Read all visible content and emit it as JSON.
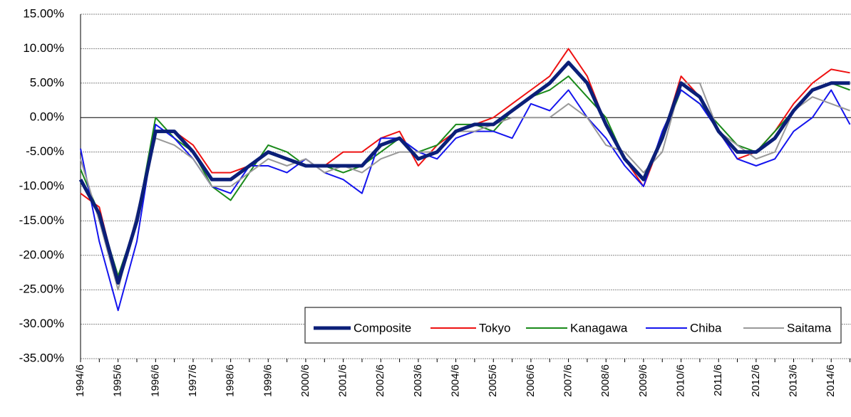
{
  "chart_data": {
    "type": "line",
    "categories": [
      "1994/6",
      null,
      "1995/6",
      null,
      "1996/6",
      null,
      "1997/6",
      null,
      "1998/6",
      null,
      "1999/6",
      null,
      "2000/6",
      null,
      "2001/6",
      null,
      "2002/6",
      null,
      "2003/6",
      null,
      "2004/6",
      null,
      "2005/6",
      null,
      "2006/6",
      null,
      "2007/6",
      null,
      "2008/6",
      null,
      "2009/6",
      null,
      "2010/6",
      null,
      "2011/6",
      null,
      "2012/6",
      null,
      "2013/6",
      null,
      "2014/6",
      null
    ],
    "series": [
      {
        "name": "Composite",
        "color": "#0b1f78",
        "values": [
          -9,
          -14,
          -24,
          -15,
          -2,
          -2,
          -5,
          -9,
          -9,
          -7,
          -5,
          -6,
          -7,
          -7,
          -7,
          -7,
          -4,
          -3,
          -6,
          -5,
          -2,
          -1,
          -1,
          1,
          3,
          5,
          8,
          5,
          -1,
          -6,
          -9,
          -3,
          5,
          3,
          -2,
          -5,
          -5,
          -3,
          1,
          4,
          5,
          5
        ]
      },
      {
        "name": "Tokyo",
        "color": "#ee1111",
        "values": [
          -11,
          -13,
          -24,
          -15,
          -2,
          -2,
          -4,
          -8,
          -8,
          -7,
          -5,
          -6,
          -7,
          -7,
          -5,
          -5,
          -3,
          -2,
          -7,
          -4,
          -2,
          -1,
          0,
          2,
          4,
          6,
          10,
          6,
          -1,
          -6,
          -10,
          -3,
          6,
          3,
          -2,
          -6,
          -5,
          -2,
          2,
          5,
          7,
          6.5
        ]
      },
      {
        "name": "Kanagawa",
        "color": "#1a8a1a",
        "values": [
          -7.5,
          -14,
          -23,
          -15,
          0,
          -3,
          -5,
          -10,
          -12,
          -8,
          -4,
          -5,
          -7,
          -7,
          -8,
          -7,
          -5,
          -3,
          -5,
          -4,
          -1,
          -1,
          -2,
          1,
          3,
          4,
          6,
          3,
          0,
          -6,
          -9,
          -3,
          4,
          2,
          -1,
          -4,
          -5,
          -2,
          1,
          4,
          5,
          4
        ]
      },
      {
        "name": "Chiba",
        "color": "#1414ee",
        "values": [
          -4.5,
          -18,
          -28,
          -18,
          -1,
          -3,
          -6,
          -10,
          -11,
          -7,
          -7,
          -8,
          -6,
          -8,
          -9,
          -11,
          -3,
          -3,
          -5,
          -6,
          -3,
          -2,
          -2,
          -3,
          2,
          1,
          4,
          0,
          -3,
          -7,
          -10,
          -2,
          4,
          2,
          -2,
          -6,
          -7,
          -6,
          -2,
          0,
          4,
          -1
        ]
      },
      {
        "name": "Saitama",
        "color": "#999999",
        "values": [
          -6,
          -15,
          -25,
          -14,
          -3,
          -4,
          -6,
          -10,
          -10,
          -8,
          -6,
          -7,
          -6,
          -8,
          -7,
          -8,
          -6,
          -5,
          -5,
          -5,
          -2,
          -2,
          -1,
          0,
          0,
          0,
          2,
          0,
          -4,
          -5,
          -8,
          -5,
          5,
          5,
          -2,
          -4,
          -6,
          -5,
          1,
          3,
          2,
          1
        ]
      }
    ],
    "ylim": [
      -35,
      15
    ],
    "yticks": [
      {
        "value": -35,
        "label": "-35.00%"
      },
      {
        "value": -30,
        "label": "-30.00%"
      },
      {
        "value": -25,
        "label": "-25.00%"
      },
      {
        "value": -20,
        "label": "-20.00%"
      },
      {
        "value": -15,
        "label": "-15.00%"
      },
      {
        "value": -10,
        "label": "-10.00%"
      },
      {
        "value": -5,
        "label": "-5.00%"
      },
      {
        "value": 0,
        "label": "0.00%"
      },
      {
        "value": 5,
        "label": "5.00%"
      },
      {
        "value": 10,
        "label": "10.00%"
      },
      {
        "value": 15,
        "label": "15.00%"
      }
    ],
    "grid": true,
    "legend": "lower right"
  }
}
